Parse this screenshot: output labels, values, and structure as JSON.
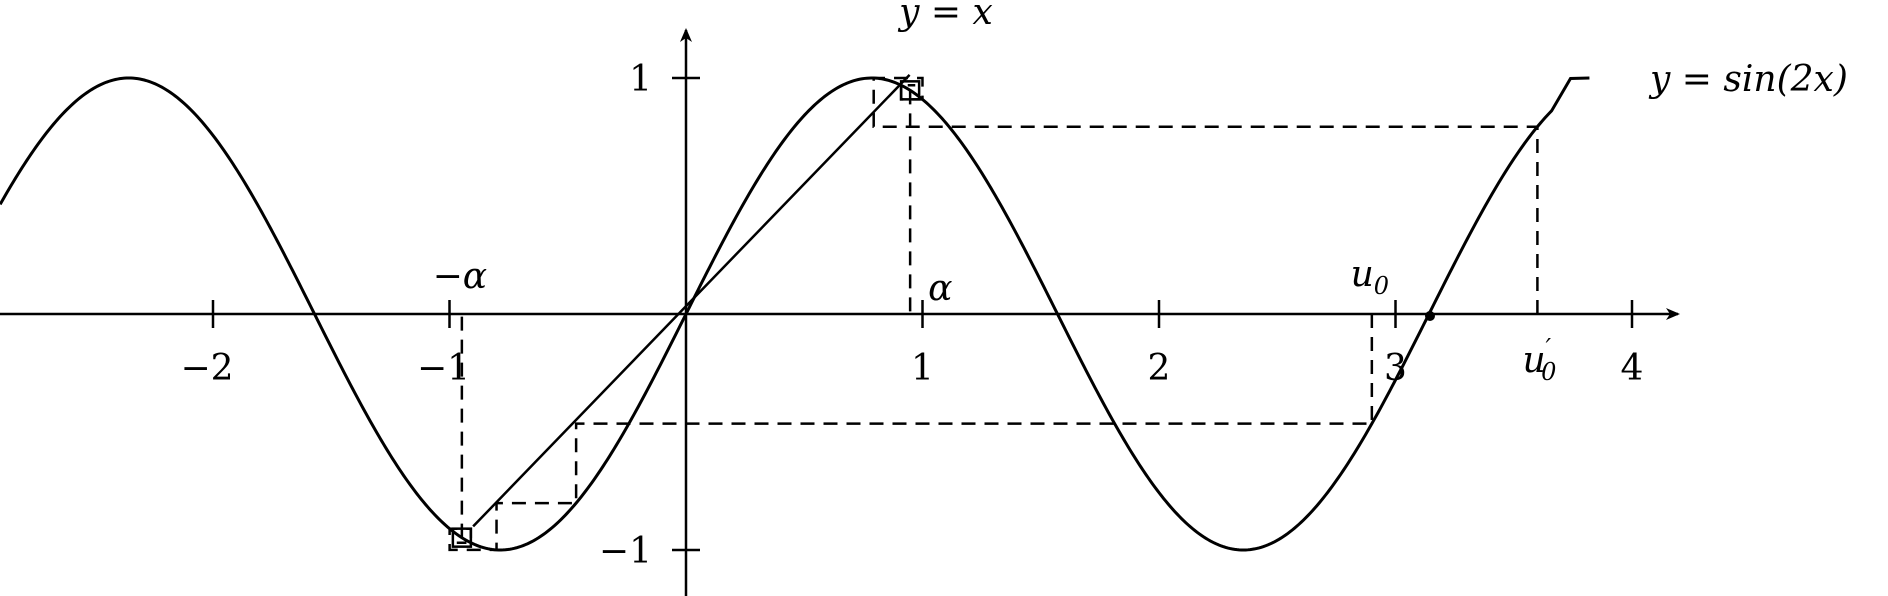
{
  "diagram": {
    "colors": {
      "ink": "#000000",
      "background": "#ffffff"
    },
    "axes": {
      "x_ticks": [
        "−2",
        "−1",
        "1",
        "2",
        "3",
        "4"
      ],
      "y_ticks": [
        "1",
        "−1"
      ],
      "x_range": [
        -2.9,
        4.2
      ],
      "y_range": [
        -1.17,
        1.2
      ]
    },
    "curves": [
      {
        "label_text": "y = sin(2x)",
        "function": "sin(2x)"
      },
      {
        "label_text": "y = x",
        "function": "x"
      }
    ],
    "points": {
      "alpha_label": "α",
      "neg_alpha_label": "−α",
      "u0_base": "u",
      "u0_sub": "0",
      "u0_prime_base": "u",
      "u0_prime_sub": "0",
      "u0_prime_mark": "′",
      "alpha_value": 0.9477,
      "u0_value": 2.9,
      "u0_prime_value": 3.6
    }
  }
}
